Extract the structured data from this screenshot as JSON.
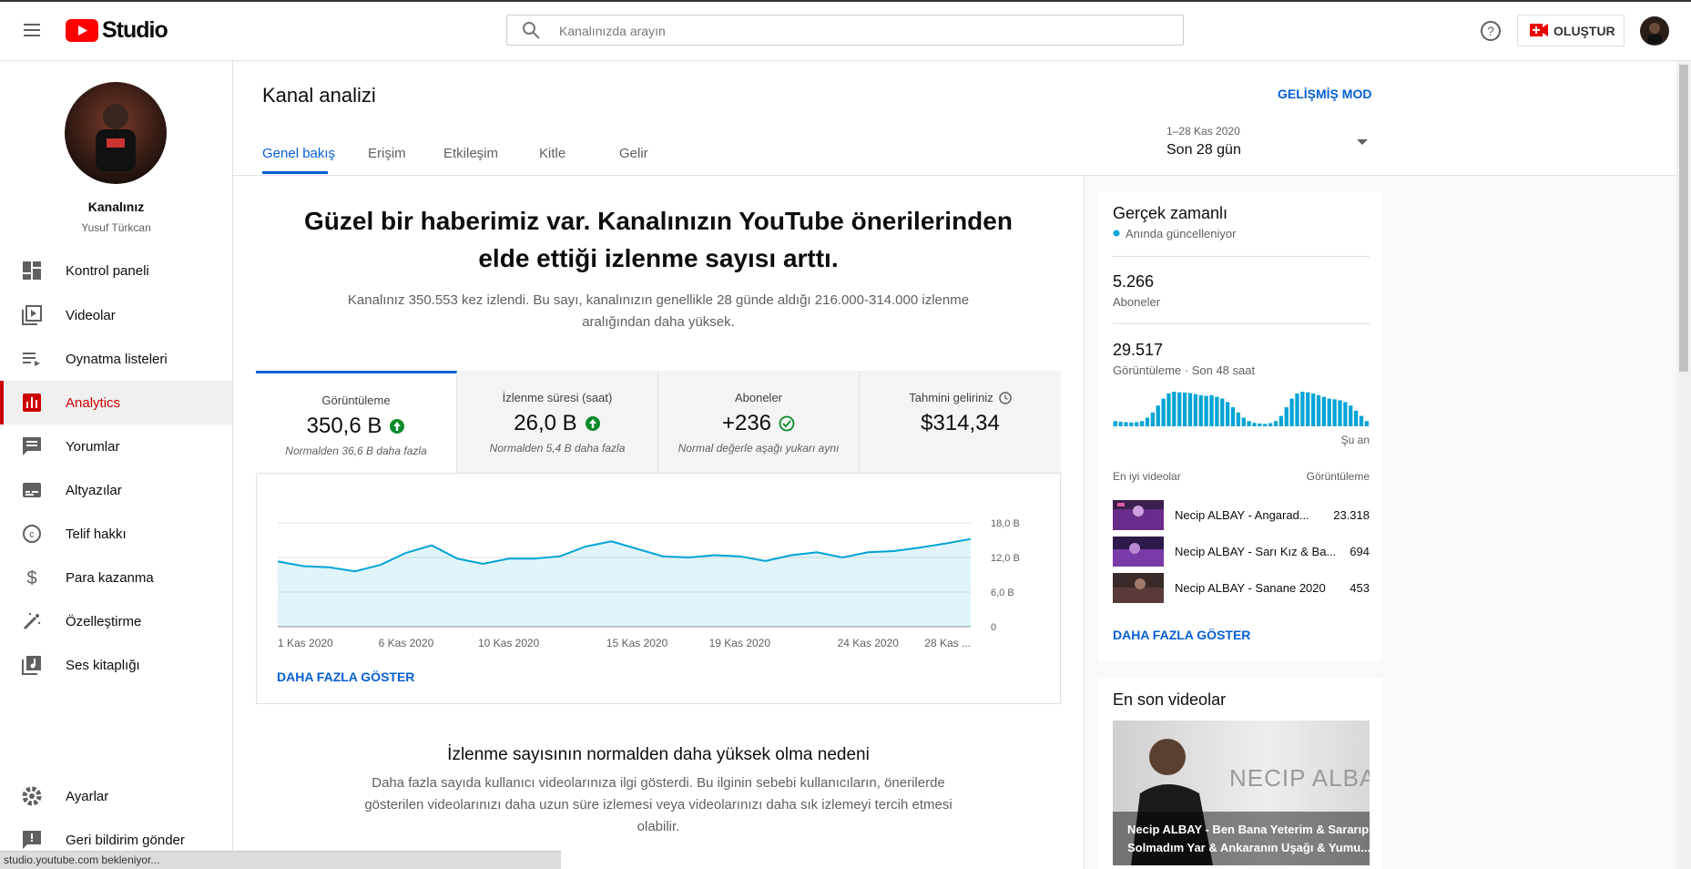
{
  "header": {
    "logo": "Studio",
    "search_placeholder": "Kanalınızda arayın",
    "create": "OLUŞTUR"
  },
  "sidebar": {
    "channel_label": "Kanalınız",
    "channel_name": "Yusuf Türkcan",
    "nav": [
      "Kontrol paneli",
      "Videolar",
      "Oynatma listeleri",
      "Analytics",
      "Yorumlar",
      "Altyazılar",
      "Telif hakkı",
      "Para kazanma",
      "Özelleştirme",
      "Ses kitaplığı"
    ],
    "bottom": [
      "Ayarlar",
      "Geri bildirim gönder"
    ]
  },
  "page": {
    "title": "Kanal analizi",
    "advanced": "GELİŞMİŞ MOD",
    "tabs": [
      "Genel bakış",
      "Erişim",
      "Etkileşim",
      "Kitle",
      "Gelir"
    ],
    "date_range": "1–28 Kas 2020",
    "period": "Son 28 gün"
  },
  "summary": {
    "headline": [
      "Güzel bir haberimiz var. Kanalınızın YouTube önerilerinden",
      "elde ettiği izlenme sayısı arttı."
    ],
    "text": [
      "Kanalınız 350.553 kez izlendi. Bu sayı, kanalınızın genellikle 28 günde aldığı 216.000-314.000 izlenme",
      "aralığından daha yüksek."
    ]
  },
  "metrics": [
    {
      "label": "Görüntüleme",
      "value": "350,6 B",
      "note": "Normalden 36,6 B daha fazla"
    },
    {
      "label": "İzlenme süresi (saat)",
      "value": "26,0 B",
      "note": "Normalden 5,4 B daha fazla"
    },
    {
      "label": "Aboneler",
      "value": "+236",
      "note": "Normal değerle aşağı yukarı aynı"
    },
    {
      "label": "Tahmini geliriniz",
      "value": "$314,34"
    }
  ],
  "chart_data": {
    "type": "line",
    "color": "#00a4d6",
    "categories": [
      "1 Kas 2020",
      null,
      null,
      null,
      null,
      "6 Kas 2020",
      null,
      null,
      null,
      "10 Kas 2020",
      null,
      null,
      null,
      null,
      "15 Kas 2020",
      null,
      null,
      null,
      "19 Kas 2020",
      null,
      null,
      null,
      null,
      "24 Kas 2020",
      null,
      null,
      null,
      "28 Kas ..."
    ],
    "values": [
      11.3,
      10.5,
      10.3,
      9.6,
      10.7,
      12.8,
      14.1,
      11.8,
      10.9,
      11.8,
      11.8,
      12.2,
      13.9,
      14.8,
      13.5,
      12.2,
      12.0,
      12.4,
      12.2,
      11.4,
      12.4,
      12.9,
      12.0,
      12.9,
      13.1,
      13.7,
      14.4,
      15.2
    ],
    "ylim": [
      0,
      18
    ],
    "yticks": [
      {
        "value": 0,
        "label": "0"
      },
      {
        "value": 6,
        "label": "6,0 B"
      },
      {
        "value": 12,
        "label": "12,0 B"
      },
      {
        "value": 18,
        "label": "18,0 B"
      }
    ],
    "grid": true
  },
  "more": "DAHA FAZLA GÖSTER",
  "reason": {
    "title": "İzlenme sayısının normalden daha yüksek olma nedeni",
    "text": [
      "Daha fazla sayıda kullanıcı videolarınıza ilgi gösterdi. Bu ilginin sebebi kullanıcıların, önerilerde",
      "gösterilen videolarınızı daha uzun süre izlemesi veya videolarınızı daha sık izlemeyi tercih etmesi",
      "olabilir."
    ]
  },
  "realtime": {
    "title": "Gerçek zamanlı",
    "subtitle": "Anında güncelleniyor",
    "subscribers": "5.266",
    "subscribers_label": "Aboneler",
    "views": "29.517",
    "views_label": "Görüntüleme · Son 48 saat",
    "bars": [
      150,
      130,
      120,
      110,
      120,
      150,
      250,
      400,
      600,
      800,
      950,
      1000,
      980,
      970,
      960,
      930,
      900,
      880,
      900,
      850,
      800,
      700,
      550,
      400,
      250,
      150,
      100,
      80,
      70,
      90,
      150,
      300,
      550,
      800,
      950,
      1000,
      980,
      950,
      900,
      850,
      800,
      780,
      750,
      700,
      600,
      450,
      300,
      150
    ],
    "now": "Şu an",
    "top_title": "En iyi videolar",
    "top_column": "Görüntüleme",
    "top_videos": [
      {
        "title": "Necip ALBAY - Angarad...",
        "views": "23.318"
      },
      {
        "title": "Necip ALBAY - Sarı Kız & Ba...",
        "views": "694"
      },
      {
        "title": "Necip ALBAY - Sanane 2020",
        "views": "453"
      }
    ],
    "more": "DAHA FAZLA GÖSTER"
  },
  "latest": {
    "title": "En son videolar",
    "thumb_brand": "NECIP ALBAY",
    "video_title": [
      "Necip ALBAY - Ben Bana Yeterim & Sararıp",
      "Solmadım Yar & Ankaranın Uşağı & Yumu..."
    ]
  },
  "status": "studio.youtube.com bekleniyor..."
}
